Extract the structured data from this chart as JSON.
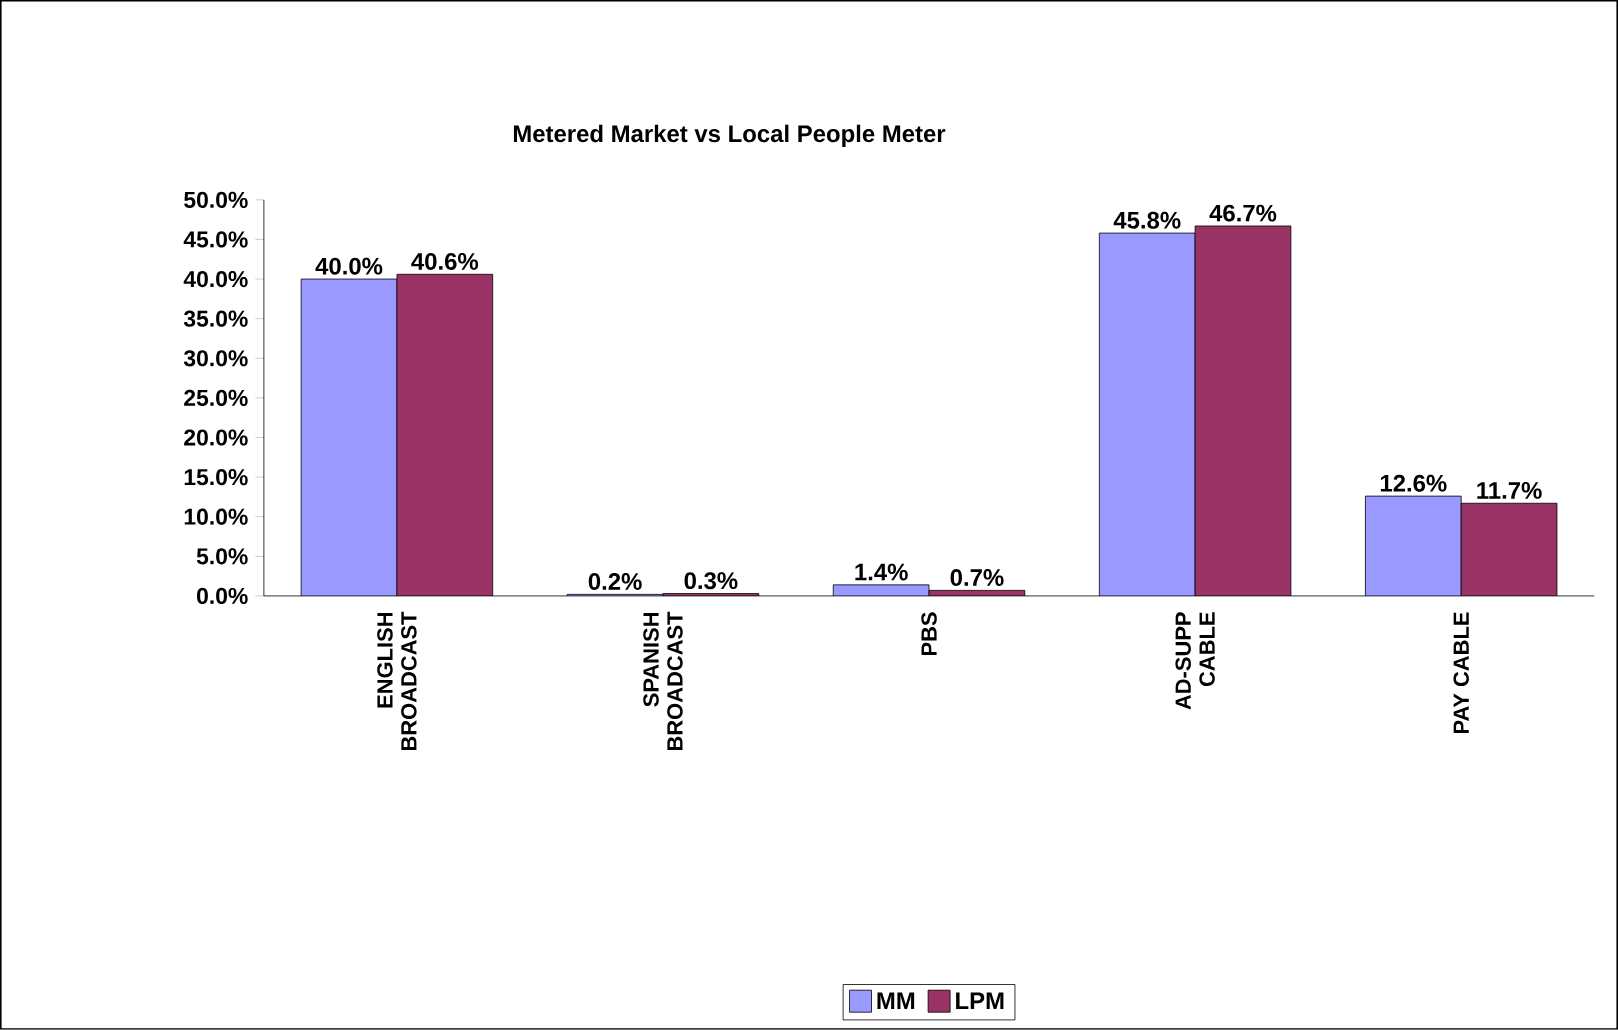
{
  "chart_data": {
    "type": "bar",
    "title": "Metered Market vs Local People Meter",
    "categories": [
      "ENGLISH BROADCAST",
      "SPANISH BROADCAST",
      "PBS",
      "AD-SUPP CABLE",
      "PAY CABLE"
    ],
    "series": [
      {
        "name": "MM",
        "color": "#9999ff",
        "values": [
          40.0,
          0.2,
          1.4,
          45.8,
          12.6
        ],
        "value_labels": [
          "40.0%",
          "0.2%",
          "1.4%",
          "45.8%",
          "12.6%"
        ]
      },
      {
        "name": "LPM",
        "color": "#993366",
        "values": [
          40.6,
          0.3,
          0.7,
          46.7,
          11.7
        ],
        "value_labels": [
          "40.6%",
          "0.3%",
          "0.7%",
          "46.7%",
          "11.7%"
        ]
      }
    ],
    "ylim": [
      0,
      50
    ],
    "yticks": [
      {
        "value": 0,
        "label": "0.0%"
      },
      {
        "value": 5,
        "label": "5.0%"
      },
      {
        "value": 10,
        "label": "10.0%"
      },
      {
        "value": 15,
        "label": "15.0%"
      },
      {
        "value": 20,
        "label": "20.0%"
      },
      {
        "value": 25,
        "label": "25.0%"
      },
      {
        "value": 30,
        "label": "30.0%"
      },
      {
        "value": 35,
        "label": "35.0%"
      },
      {
        "value": 40,
        "label": "40.0%"
      },
      {
        "value": 45,
        "label": "45.0%"
      },
      {
        "value": 50,
        "label": "50.0%"
      }
    ],
    "grid": false,
    "legend": "bottom"
  }
}
